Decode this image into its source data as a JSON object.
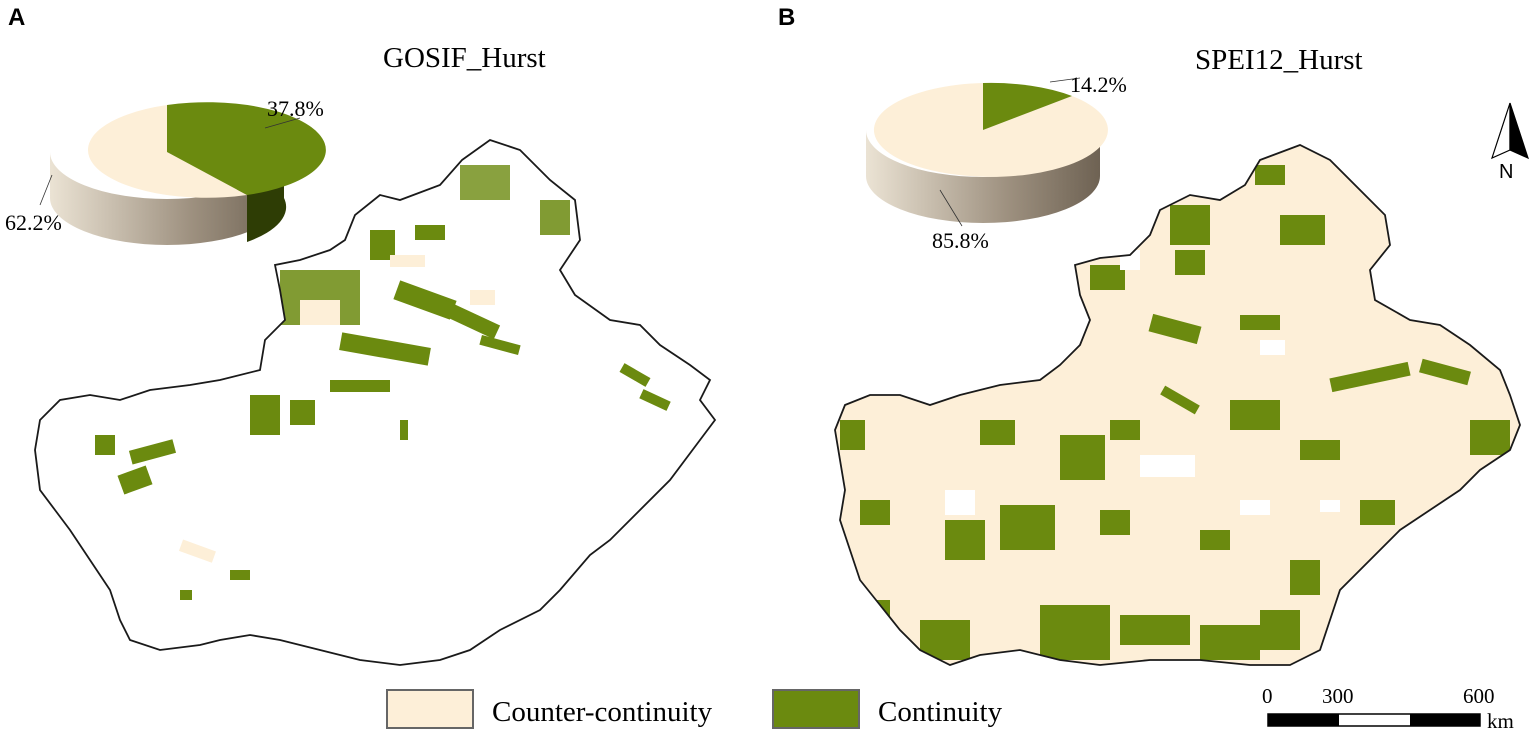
{
  "panels": [
    {
      "letter": "A",
      "title": "GOSIF_Hurst",
      "pie": {
        "counter_pct_label": "62.2%",
        "continuity_pct_label": "37.8%",
        "counter": 62.2,
        "continuity": 37.8
      }
    },
    {
      "letter": "B",
      "title": "SPEI12_Hurst",
      "pie": {
        "counter_pct_label": "85.8%",
        "continuity_pct_label": "14.2%",
        "counter": 85.8,
        "continuity": 14.2
      }
    }
  ],
  "legend": {
    "items": [
      {
        "label": "Counter-continuity",
        "color": "#fdefd8"
      },
      {
        "label": "Continuity",
        "color": "#6b8a0f"
      }
    ]
  },
  "north_arrow": {
    "label": "N"
  },
  "scale_bar": {
    "ticks": [
      "0",
      "300",
      "600"
    ],
    "unit": "km"
  },
  "colors": {
    "counter": "#fdefd8",
    "continuity": "#6b8a0f",
    "counter_side": "#b5a996",
    "continuity_side": "#2e3d05"
  }
}
